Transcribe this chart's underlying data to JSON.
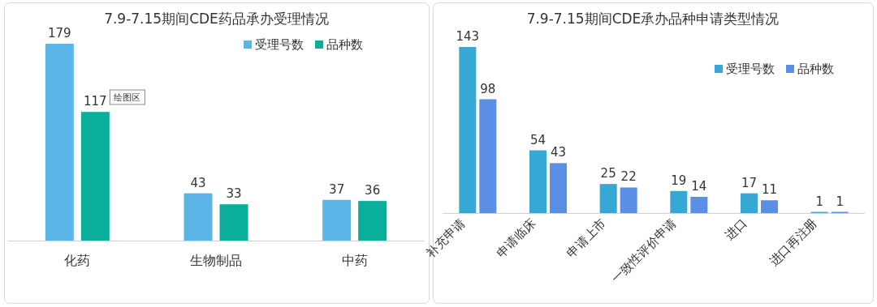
{
  "chart_data": [
    {
      "type": "bar",
      "title": "7.9-7.15期间CDE药品承办受理情况",
      "categories": [
        "化药",
        "生物制品",
        "中药"
      ],
      "series": [
        {
          "name": "受理号数",
          "color": "#5bb5e6",
          "values": [
            179,
            43,
            37
          ]
        },
        {
          "name": "品种数",
          "color": "#0aae9a",
          "values": [
            117,
            33,
            36
          ]
        }
      ],
      "data_labels": true,
      "legend": "top right",
      "annotations": [
        "绘图区"
      ]
    },
    {
      "type": "bar",
      "title": "7.9-7.15期间CDE承办品种申请类型情况",
      "categories": [
        "补充申请",
        "申请临床",
        "申请上市",
        "一致性评价申请",
        "进口",
        "进口再注册"
      ],
      "series": [
        {
          "name": "受理号数",
          "color": "#35a8d6",
          "values": [
            143,
            54,
            25,
            19,
            17,
            1
          ]
        },
        {
          "name": "品种数",
          "color": "#5b8fe6",
          "values": [
            98,
            43,
            22,
            14,
            11,
            1
          ]
        }
      ],
      "data_labels": true,
      "legend": "right"
    }
  ]
}
